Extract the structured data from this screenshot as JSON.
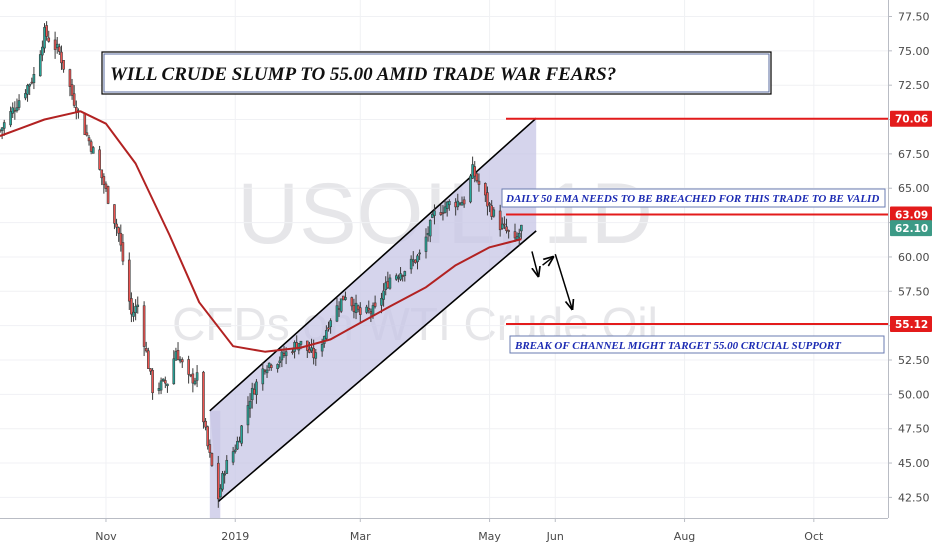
{
  "title": "WILL CRUDE SLUMP TO 55.00 AMID TRADE WAR FEARS?",
  "watermark": {
    "symbol": "USOIL, 1D",
    "description": "CFDs on WTI Crude Oil"
  },
  "notes": {
    "ema_note": "DAILY 50 EMA NEEDS TO BE BREACHED FOR THIS TRADE TO BE VALID",
    "break_note": "BREAK OF CHANNEL MIGHT TARGET 55.00 CRUCIAL SUPPORT"
  },
  "price_tags": [
    {
      "label": "70.06",
      "value": 70.06,
      "color": "#e31b1b"
    },
    {
      "label": "63.09",
      "value": 63.09,
      "color": "#e31b1b"
    },
    {
      "label": "62.10",
      "value": 62.1,
      "color": "#3c9a86"
    },
    {
      "label": "55.12",
      "value": 55.12,
      "color": "#e31b1b"
    }
  ],
  "colors": {
    "up": "#26a69a",
    "down": "#ef5350",
    "ema": "#b22222",
    "level": "#e31b1b",
    "channel_fill": "#c7c5e6",
    "arrow": "#000000"
  },
  "chart_data": {
    "type": "candlestick",
    "symbol": "USOIL",
    "timeframe": "1D",
    "y_ticks": [
      42.5,
      45.0,
      47.5,
      50.0,
      52.5,
      55.0,
      57.5,
      60.0,
      62.5,
      65.0,
      67.5,
      70.0,
      72.5,
      75.0,
      77.5
    ],
    "y_tick_labels": [
      "42.50",
      "45.00",
      "47.50",
      "50.00",
      "52.50",
      "55.00",
      "57.50",
      "60.00",
      "62.50",
      "65.00",
      "67.50",
      "70.00",
      "72.50",
      "75.00",
      "77.50"
    ],
    "x_ticks": [
      {
        "label": "Nov",
        "date": "2018-11-01"
      },
      {
        "label": "2019",
        "date": "2019-01-01"
      },
      {
        "label": "Mar",
        "date": "2019-03-01"
      },
      {
        "label": "May",
        "date": "2019-05-01"
      },
      {
        "label": "Jun",
        "date": "2019-06-01"
      },
      {
        "label": "Aug",
        "date": "2019-08-01"
      },
      {
        "label": "Oct",
        "date": "2019-10-01"
      }
    ],
    "x_range": [
      "2018-09-12",
      "2019-11-05"
    ],
    "y_range": [
      41.0,
      78.7
    ],
    "close_anchors": [
      [
        "2018-09-12",
        69.2
      ],
      [
        "2018-09-20",
        71.2
      ],
      [
        "2018-09-28",
        73.2
      ],
      [
        "2018-10-03",
        76.3
      ],
      [
        "2018-10-10",
        74.9
      ],
      [
        "2018-10-16",
        71.8
      ],
      [
        "2018-10-22",
        69.2
      ],
      [
        "2018-10-26",
        67.7
      ],
      [
        "2018-10-31",
        65.3
      ],
      [
        "2018-11-07",
        61.7
      ],
      [
        "2018-11-13",
        55.8
      ],
      [
        "2018-11-16",
        56.5
      ],
      [
        "2018-11-23",
        50.4
      ],
      [
        "2018-11-30",
        50.9
      ],
      [
        "2018-12-04",
        53.2
      ],
      [
        "2018-12-10",
        51.1
      ],
      [
        "2018-12-14",
        51.2
      ],
      [
        "2018-12-19",
        46.2
      ],
      [
        "2018-12-24",
        42.5
      ],
      [
        "2018-12-27",
        44.6
      ],
      [
        "2019-01-02",
        46.5
      ],
      [
        "2019-01-08",
        49.8
      ],
      [
        "2019-01-15",
        52.1
      ],
      [
        "2019-01-22",
        52.6
      ],
      [
        "2019-01-31",
        53.8
      ],
      [
        "2019-02-08",
        52.7
      ],
      [
        "2019-02-15",
        55.6
      ],
      [
        "2019-02-22",
        57.3
      ],
      [
        "2019-03-01",
        55.8
      ],
      [
        "2019-03-08",
        56.1
      ],
      [
        "2019-03-15",
        58.5
      ],
      [
        "2019-03-22",
        59.1
      ],
      [
        "2019-03-29",
        60.1
      ],
      [
        "2019-04-05",
        63.1
      ],
      [
        "2019-04-12",
        63.9
      ],
      [
        "2019-04-19",
        64.1
      ],
      [
        "2019-04-23",
        66.3
      ],
      [
        "2019-04-30",
        63.9
      ],
      [
        "2019-05-06",
        62.3
      ],
      [
        "2019-05-10",
        61.7
      ],
      [
        "2019-05-13",
        61.0
      ],
      [
        "2019-05-16",
        62.1
      ]
    ],
    "ema_50": [
      [
        "2018-09-12",
        68.8
      ],
      [
        "2018-10-03",
        70.0
      ],
      [
        "2018-10-20",
        70.6
      ],
      [
        "2018-11-01",
        69.7
      ],
      [
        "2018-11-15",
        66.8
      ],
      [
        "2018-12-01",
        61.6
      ],
      [
        "2018-12-15",
        56.7
      ],
      [
        "2018-12-31",
        53.5
      ],
      [
        "2019-01-15",
        53.1
      ],
      [
        "2019-02-01",
        53.4
      ],
      [
        "2019-02-15",
        54.0
      ],
      [
        "2019-03-01",
        55.2
      ],
      [
        "2019-03-15",
        56.4
      ],
      [
        "2019-04-01",
        57.8
      ],
      [
        "2019-04-15",
        59.4
      ],
      [
        "2019-05-01",
        60.7
      ],
      [
        "2019-05-16",
        61.3
      ]
    ],
    "horizontal_levels": [
      70.06,
      63.09,
      55.12
    ],
    "last_price": 62.1,
    "channel": {
      "upper": [
        [
          "2018-12-20",
          48.8
        ],
        [
          "2019-05-23",
          70.1
        ]
      ],
      "lower": [
        [
          "2018-12-24",
          42.2
        ],
        [
          "2019-05-23",
          61.9
        ]
      ]
    },
    "projection_arrows": [
      [
        [
          "2019-05-21",
          60.4
        ],
        [
          "2019-05-24",
          58.6
        ]
      ],
      [
        [
          "2019-05-26",
          59.4
        ],
        [
          "2019-05-31",
          60.0
        ]
      ],
      [
        [
          "2019-06-01",
          60.2
        ],
        [
          "2019-06-09",
          56.2
        ]
      ]
    ],
    "grid": true
  }
}
